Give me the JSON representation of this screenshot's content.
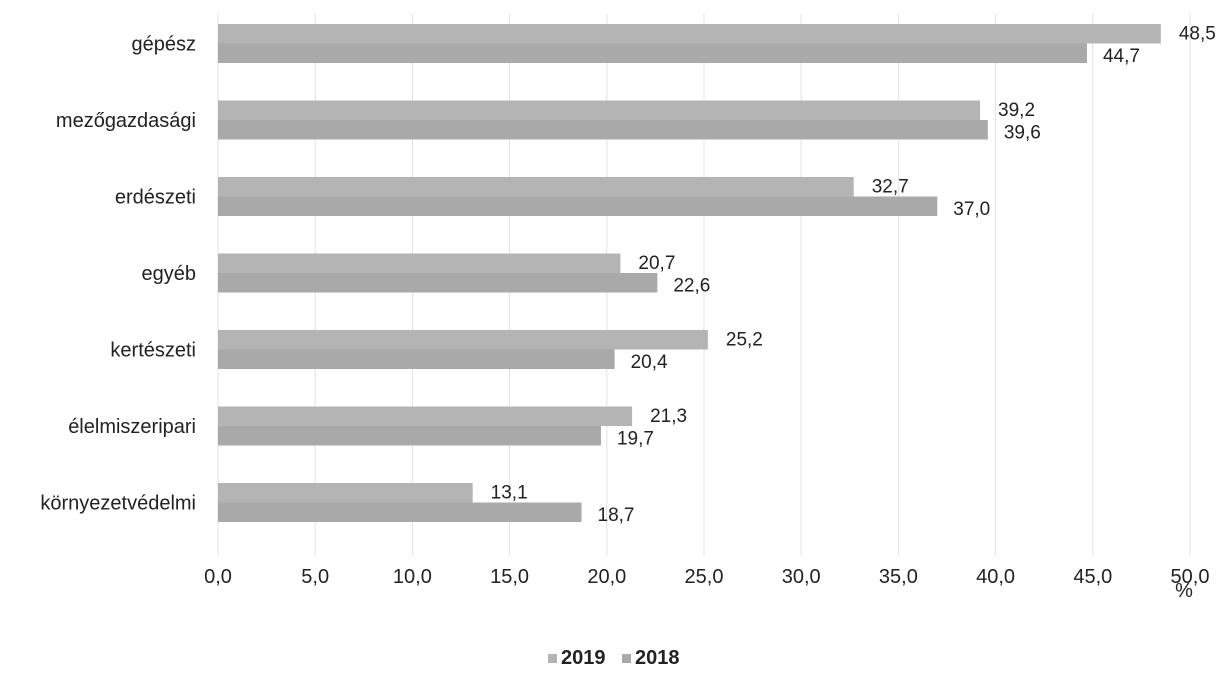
{
  "chart_data": {
    "type": "bar",
    "orientation": "horizontal",
    "categories": [
      "gépész",
      "mezőgazdasági",
      "erdészeti",
      "egyéb",
      "kertészeti",
      "élelmiszeripari",
      "környezetvédelmi"
    ],
    "series": [
      {
        "name": "2019",
        "values": [
          48.5,
          39.2,
          32.7,
          20.7,
          25.2,
          21.3,
          13.1
        ],
        "labels": [
          "48,5",
          "39,2",
          "32,7",
          "20,7",
          "25,2",
          "21,3",
          "13,1"
        ],
        "color": "#b4b4b4"
      },
      {
        "name": "2018",
        "values": [
          44.7,
          39.6,
          37.0,
          22.6,
          20.4,
          19.7,
          18.7
        ],
        "labels": [
          "44,7",
          "39,6",
          "37,0",
          "22,6",
          "20,4",
          "19,7",
          "18,7"
        ],
        "color": "#a9a9a9"
      }
    ],
    "xlim": [
      0,
      50
    ],
    "xticks": [
      0,
      5,
      10,
      15,
      20,
      25,
      30,
      35,
      40,
      45,
      50
    ],
    "xtick_labels": [
      "0,0",
      "5,0",
      "10,0",
      "15,0",
      "20,0",
      "25,0",
      "30,0",
      "35,0",
      "40,0",
      "45,0",
      "50,0"
    ],
    "xlabel": "%",
    "grid": "vertical",
    "legend": "bottom-center"
  }
}
